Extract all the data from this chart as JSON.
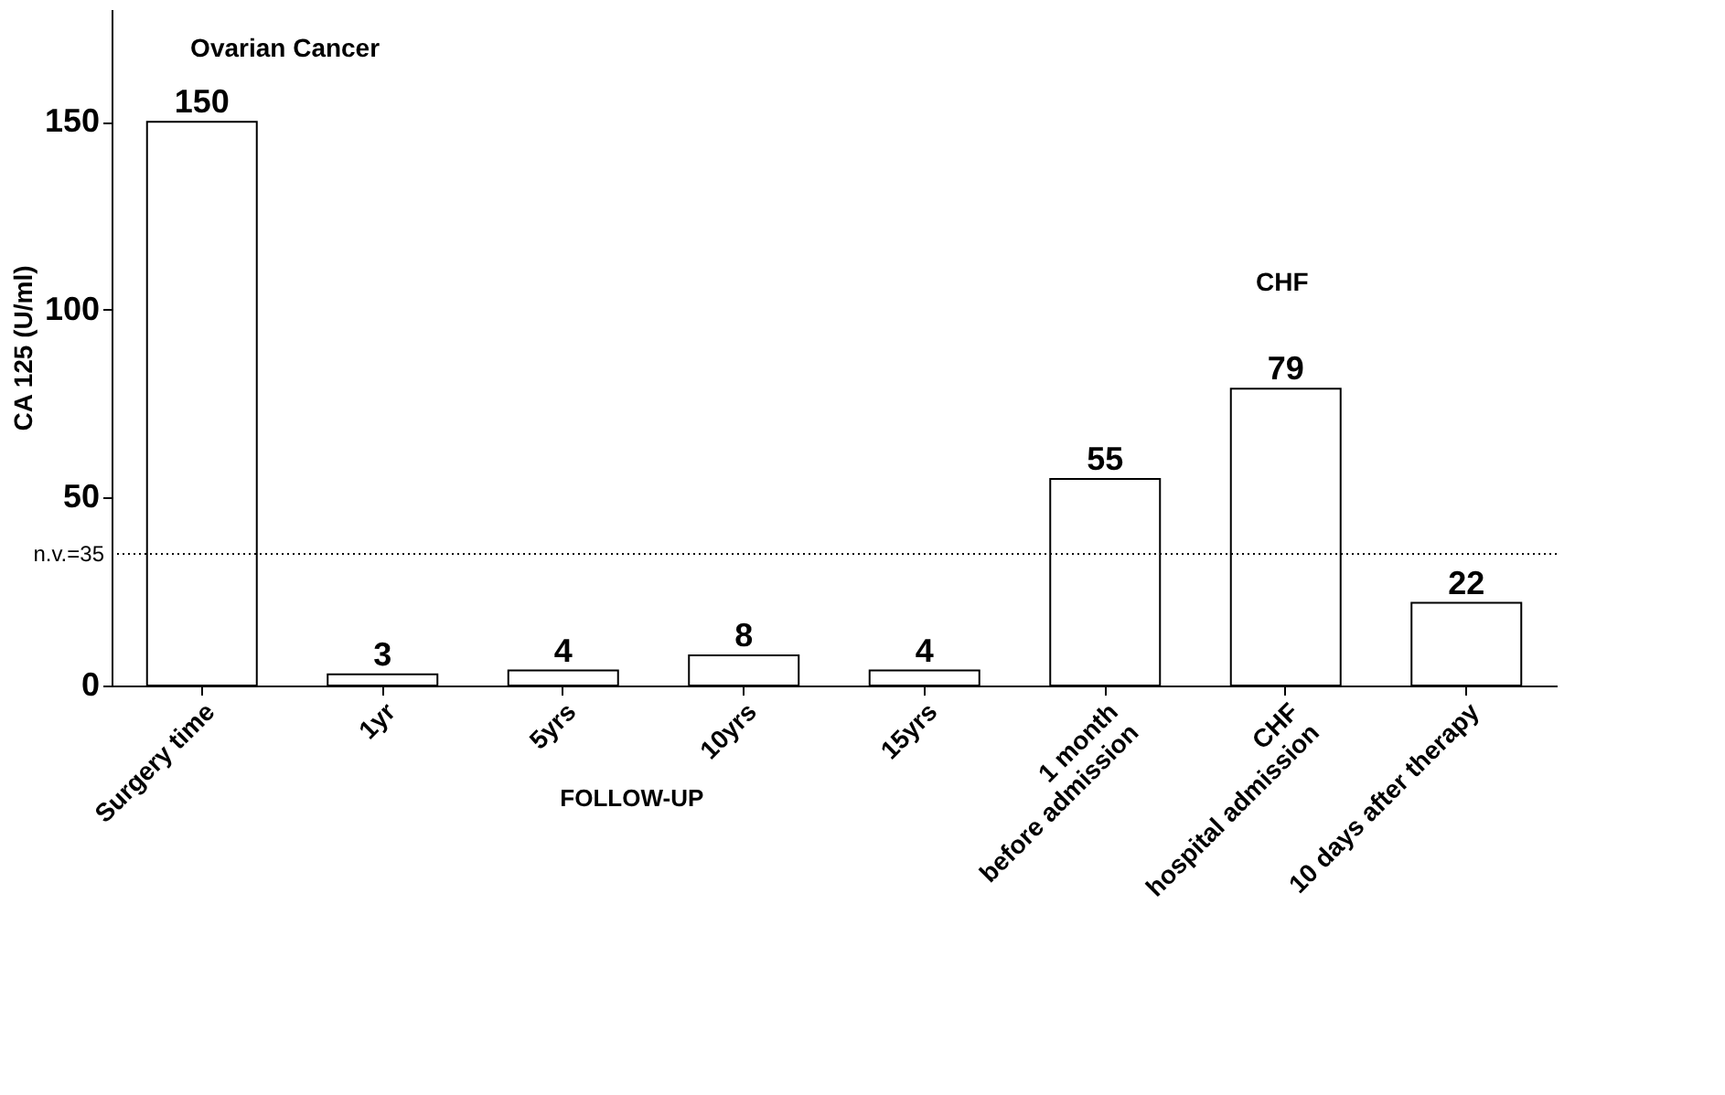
{
  "chart_data": {
    "type": "bar",
    "ylabel": "CA 125 (U/ml)",
    "categories": [
      "Surgery time",
      "1yr",
      "5yrs",
      "10yrs",
      "15yrs",
      "1 month\nbefore admission",
      "CHF\nhospital admission",
      "10 days after therapy"
    ],
    "values": [
      150,
      3,
      4,
      8,
      4,
      55,
      79,
      22
    ],
    "color": "#ffffff",
    "data_labels": true,
    "ylim": [
      0,
      180
    ],
    "yticks": [
      0,
      50,
      100,
      150
    ],
    "grid": false,
    "ref_lines": [
      {
        "axis": "y",
        "value": 35,
        "label": "n.v.=35",
        "line_style": "dotted",
        "color": "#000000"
      }
    ],
    "annotations": [
      "Ovarian Cancer",
      "CHF",
      "FOLLOW-UP"
    ]
  }
}
